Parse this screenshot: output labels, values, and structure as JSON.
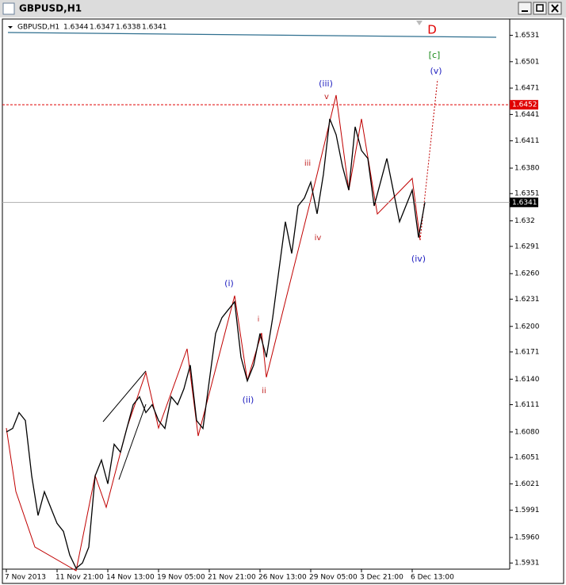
{
  "chart_data": {
    "type": "line",
    "symbol": "GBPUSD,H1",
    "ohlc": [
      1.6344,
      1.6347,
      1.6338,
      1.6341
    ],
    "categories": [
      "7 Nov 2013",
      null,
      null,
      null,
      null,
      null,
      null,
      null,
      "11 Nov 21:00",
      null,
      null,
      null,
      null,
      null,
      null,
      null,
      "14 Nov 13:00",
      null,
      null,
      null,
      null,
      null,
      null,
      null,
      "19 Nov 05:00",
      null,
      null,
      null,
      null,
      null,
      null,
      null,
      "21 Nov 21:00",
      null,
      null,
      null,
      null,
      null,
      null,
      null,
      "26 Nov 13:00",
      null,
      null,
      null,
      null,
      null,
      null,
      null,
      "29 Nov 05:00",
      null,
      null,
      null,
      null,
      null,
      null,
      null,
      "3 Dec 21:00",
      null,
      null,
      null,
      null,
      null,
      null,
      null,
      "6 Dec 13:00",
      null,
      null
    ],
    "values": [
      1.608,
      1.6084,
      1.6102,
      1.6093,
      1.603,
      1.5985,
      1.6012,
      1.5994,
      1.5976,
      1.5967,
      1.594,
      1.5925,
      1.5931,
      1.5949,
      1.603,
      1.6048,
      1.6021,
      1.6066,
      1.6057,
      1.6084,
      1.6111,
      1.612,
      1.6102,
      1.6111,
      1.6093,
      1.6084,
      1.612,
      1.6111,
      1.6129,
      1.6156,
      1.6093,
      1.6084,
      1.6138,
      1.6192,
      1.621,
      1.6219,
      1.6228,
      1.6165,
      1.6138,
      1.6156,
      1.6192,
      1.6165,
      1.621,
      1.6265,
      1.6319,
      1.6283,
      1.6337,
      1.6346,
      1.6364,
      1.6328,
      1.6373,
      1.6436,
      1.6418,
      1.6382,
      1.6355,
      1.6427,
      1.64,
      1.6391,
      1.6337,
      1.6364,
      1.6391,
      1.6355,
      1.6319,
      1.6337,
      1.6355,
      1.6301,
      1.6341
    ],
    "color": "#000000",
    "ylim": [
      1.5924,
      1.6545
    ],
    "yticks": [
      1.6531,
      1.6501,
      1.6471,
      1.6441,
      1.6411,
      {
        "value": 1.638,
        "label": "1.6380"
      },
      1.6351,
      1.632,
      1.6291,
      {
        "value": 1.626,
        "label": "1.6260"
      },
      1.6231,
      {
        "value": 1.62,
        "label": "1.6200"
      },
      1.6171,
      {
        "value": 1.614,
        "label": "1.6140"
      },
      1.6111,
      {
        "value": 1.608,
        "label": "1.6080"
      },
      1.6051,
      1.6021,
      1.5991,
      {
        "value": 1.596,
        "label": "1.5960"
      },
      1.5931
    ],
    "levels": [
      {
        "value": 1.6452,
        "color": "#e00000",
        "style": "dashed"
      },
      {
        "value": 1.6341,
        "color": "#000000",
        "style": "solid"
      }
    ],
    "annotations": [
      {
        "text": "D",
        "color": "#e00000"
      },
      {
        "text": "[c]",
        "color": "#1a8a1a"
      },
      {
        "text": "(v)",
        "color": "#2020c0"
      },
      {
        "text": "(iii)",
        "color": "#2020c0"
      },
      {
        "text": "v",
        "color": "#c02020"
      },
      {
        "text": "iii",
        "color": "#c02020"
      },
      {
        "text": "iv",
        "color": "#c02020"
      },
      {
        "text": "(iv)",
        "color": "#2020c0"
      },
      {
        "text": "(i)",
        "color": "#2020c0"
      },
      {
        "text": "i",
        "color": "#c02020"
      },
      {
        "text": "ii",
        "color": "#c02020"
      },
      {
        "text": "(ii)",
        "color": "#2020c0"
      }
    ],
    "grid": false
  }
}
